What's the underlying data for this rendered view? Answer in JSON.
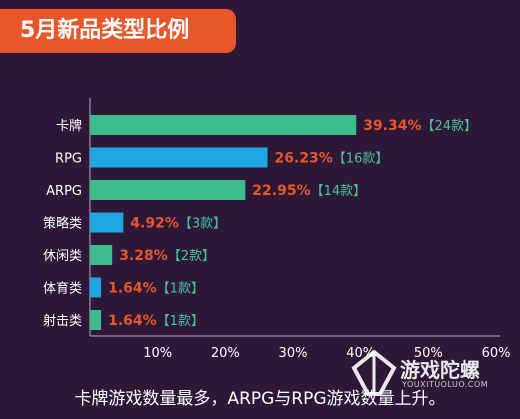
{
  "header": {
    "title": "5月新品类型比例"
  },
  "footer": {
    "text": "卡牌游戏数量最多，ARPG与RPG游戏数量上升。"
  },
  "watermark": {
    "name": "游戏陀螺",
    "url": "YOUXITUOLUO.COM"
  },
  "colors": {
    "background": "#2e1838",
    "accent": "#e8572a",
    "bar_green": "#3dbd8c",
    "bar_blue": "#1fa6e0",
    "count_green": "#46c79a"
  },
  "chart_data": {
    "type": "bar",
    "orientation": "horizontal",
    "categories": [
      "卡牌",
      "RPG",
      "ARPG",
      "策略类",
      "休闲类",
      "体育类",
      "射击类"
    ],
    "values": [
      39.34,
      26.23,
      22.95,
      4.92,
      3.28,
      1.64,
      1.64
    ],
    "value_labels": [
      "39.34%",
      "26.23%",
      "22.95%",
      "4.92%",
      "3.28%",
      "1.64%",
      "1.64%"
    ],
    "count_labels": [
      "【24款】",
      "【16款】",
      "【14款】",
      "【3款】",
      "【2款】",
      "【1款】",
      "【1款】"
    ],
    "bar_colors": [
      "#3dbd8c",
      "#1fa6e0",
      "#3dbd8c",
      "#1fa6e0",
      "#3dbd8c",
      "#1fa6e0",
      "#3dbd8c"
    ],
    "xticks": [
      "10%",
      "20%",
      "30%",
      "40%",
      "50%",
      "60%"
    ],
    "xtick_values": [
      10,
      20,
      30,
      40,
      50,
      60
    ],
    "xlim": [
      0,
      60
    ],
    "grid": false
  }
}
